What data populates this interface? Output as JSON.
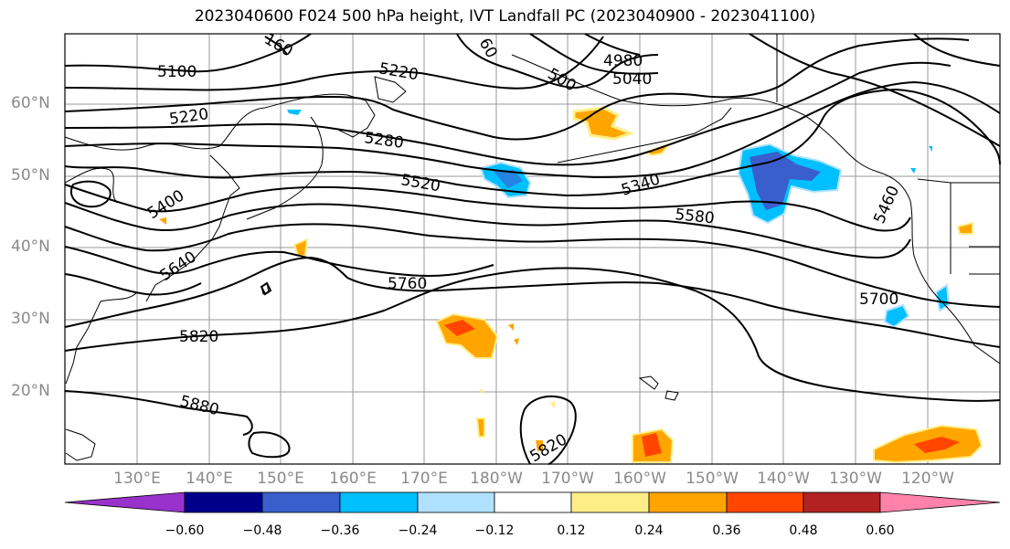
{
  "title": "2023040600 F024 500 hPa height, IVT Landfall PC (2023040900 - 2023041100)",
  "lat_labels": [
    "60°N",
    "50°N",
    "40°N",
    "30°N",
    "20°N"
  ],
  "lon_labels": [
    "130°E",
    "140°E",
    "150°E",
    "160°E",
    "170°E",
    "180°W",
    "170°W",
    "160°W",
    "150°W",
    "140°W",
    "130°W",
    "120°W"
  ],
  "contour_labels": [
    "5100",
    "5220",
    "5220",
    "5280",
    "5400",
    "5520",
    "5340",
    "5580",
    "5460",
    "5640",
    "5760",
    "5700",
    "5820",
    "5880",
    "5820",
    "160",
    "60",
    "4980",
    "5040",
    "500"
  ],
  "colorbar": {
    "ticks": [
      "−0.60",
      "−0.48",
      "−0.36",
      "−0.24",
      "−0.12",
      "0.12",
      "0.24",
      "0.36",
      "0.48",
      "0.60"
    ],
    "colors": [
      "#9932cc",
      "#00008b",
      "#3a5fcd",
      "#00bfff",
      "#b0e2ff",
      "#ffffff",
      "#ffee88",
      "#ffa500",
      "#ff4500",
      "#b22222",
      "#ff82ab"
    ]
  }
}
